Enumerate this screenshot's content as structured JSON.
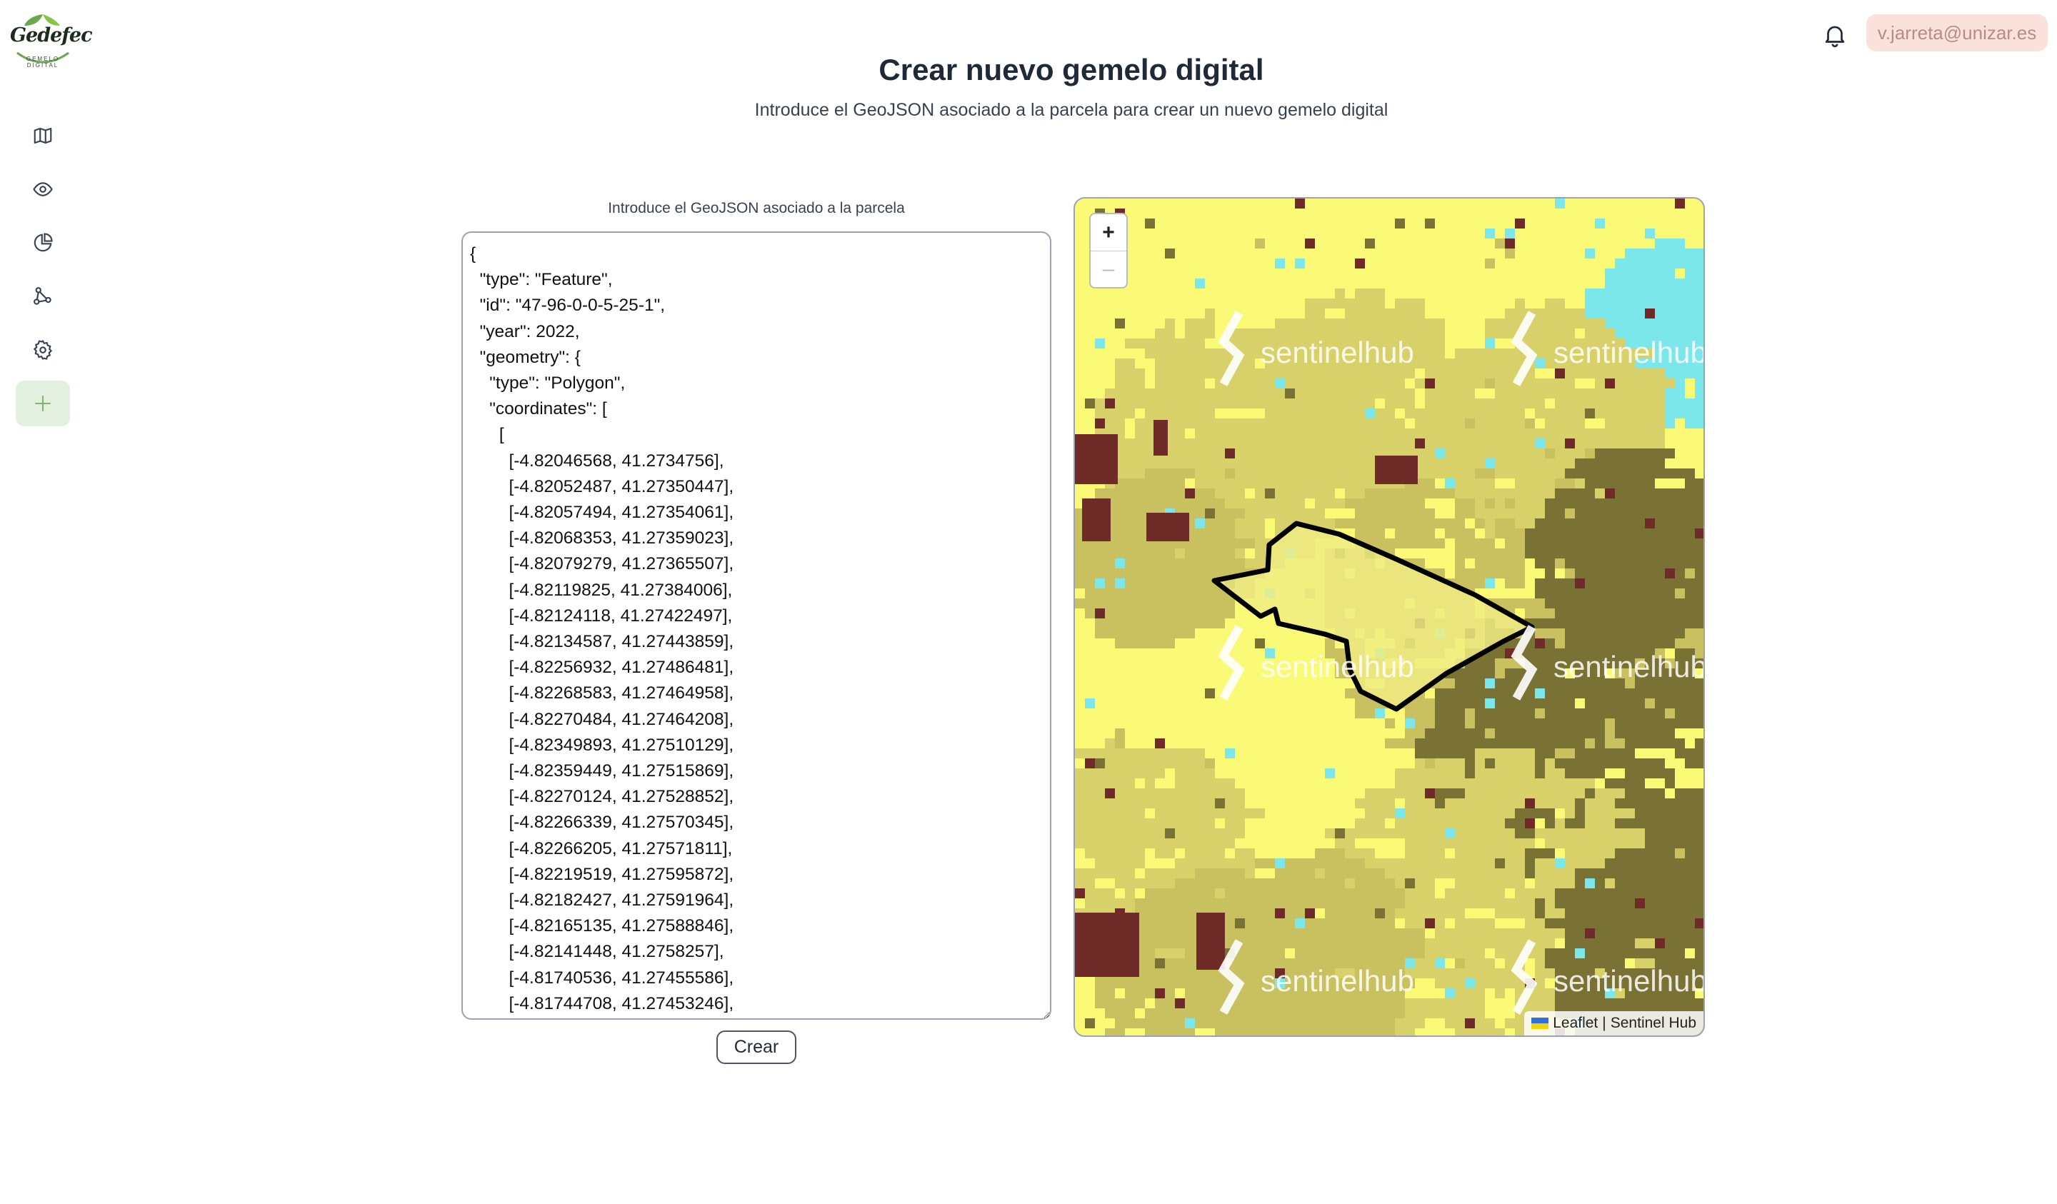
{
  "app": {
    "logo_text": "Gedefec",
    "logo_subtitle": "GEMELO DIGITAL"
  },
  "sidebar": {
    "items": [
      {
        "icon": "map-icon"
      },
      {
        "icon": "eye-icon"
      },
      {
        "icon": "pie-chart-icon"
      },
      {
        "icon": "share-nodes-icon"
      },
      {
        "icon": "gear-icon"
      },
      {
        "icon": "plus-icon",
        "active": true
      }
    ]
  },
  "header": {
    "user_email": "v.jarreta@unizar.es"
  },
  "page": {
    "title": "Crear nuevo gemelo digital",
    "subtitle": "Introduce el GeoJSON asociado a la parcela para crear un nuevo gemelo digital"
  },
  "form": {
    "label": "Introduce el GeoJSON asociado a la parcela",
    "geojson_value": "{\n  \"type\": \"Feature\",\n  \"id\": \"47-96-0-0-5-25-1\",\n  \"year\": 2022,\n  \"geometry\": {\n    \"type\": \"Polygon\",\n    \"coordinates\": [\n      [\n        [-4.82046568, 41.2734756],\n        [-4.82052487, 41.27350447],\n        [-4.82057494, 41.27354061],\n        [-4.82068353, 41.27359023],\n        [-4.82079279, 41.27365507],\n        [-4.82119825, 41.27384006],\n        [-4.82124118, 41.27422497],\n        [-4.82134587, 41.27443859],\n        [-4.82256932, 41.27486481],\n        [-4.82268583, 41.27464958],\n        [-4.82270484, 41.27464208],\n        [-4.82349893, 41.27510129],\n        [-4.82359449, 41.27515869],\n        [-4.82270124, 41.27528852],\n        [-4.82266339, 41.27570345],\n        [-4.82266205, 41.27571811],\n        [-4.82219519, 41.27595872],\n        [-4.82182427, 41.27591964],\n        [-4.82165135, 41.27588846],\n        [-4.82141448, 41.2758257],\n        [-4.81740536, 41.27455586],\n        [-4.81744708, 41.27453246],",
    "submit_label": "Crear"
  },
  "map": {
    "zoom_in": "+",
    "zoom_out": "–",
    "watermark": "sentinelhub",
    "attribution_leaflet": "Leaflet",
    "attribution_separator": "|",
    "attribution_provider": "Sentinel Hub",
    "colors": {
      "yellow": "#fbfa77",
      "olive_light": "#d8d16a",
      "olive": "#c9c160",
      "olive_dark": "#7a7134",
      "cyan": "#7be7ea",
      "maroon": "#6e2b28"
    }
  }
}
